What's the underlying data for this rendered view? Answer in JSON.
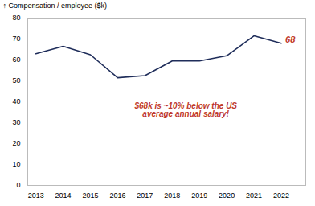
{
  "chart_data": {
    "type": "line",
    "x": [
      2013,
      2014,
      2015,
      2016,
      2017,
      2018,
      2019,
      2020,
      2021,
      2022
    ],
    "values": [
      63,
      66.5,
      62.5,
      51.5,
      52.5,
      59.5,
      59.5,
      62,
      71.5,
      68
    ],
    "color": "#1f2d5a",
    "ylabel": "Compensation / employee ($k)",
    "xlim": [
      2012.7,
      2022.9
    ],
    "xticks": [
      2013,
      2014,
      2015,
      2016,
      2017,
      2018,
      2019,
      2020,
      2021,
      2022
    ],
    "ylim": [
      0,
      80
    ],
    "yticks": [
      0,
      10,
      20,
      30,
      40,
      50,
      60,
      70,
      80
    ],
    "grid": false,
    "annotations": [
      {
        "text": "$68k is ~10% below the US\naverage annual salary!",
        "x": 2018.5,
        "y": 36,
        "color": "#c0392b"
      },
      {
        "text": "68",
        "x": 2022.15,
        "y": 69.5,
        "color": "#c0392b"
      }
    ]
  }
}
